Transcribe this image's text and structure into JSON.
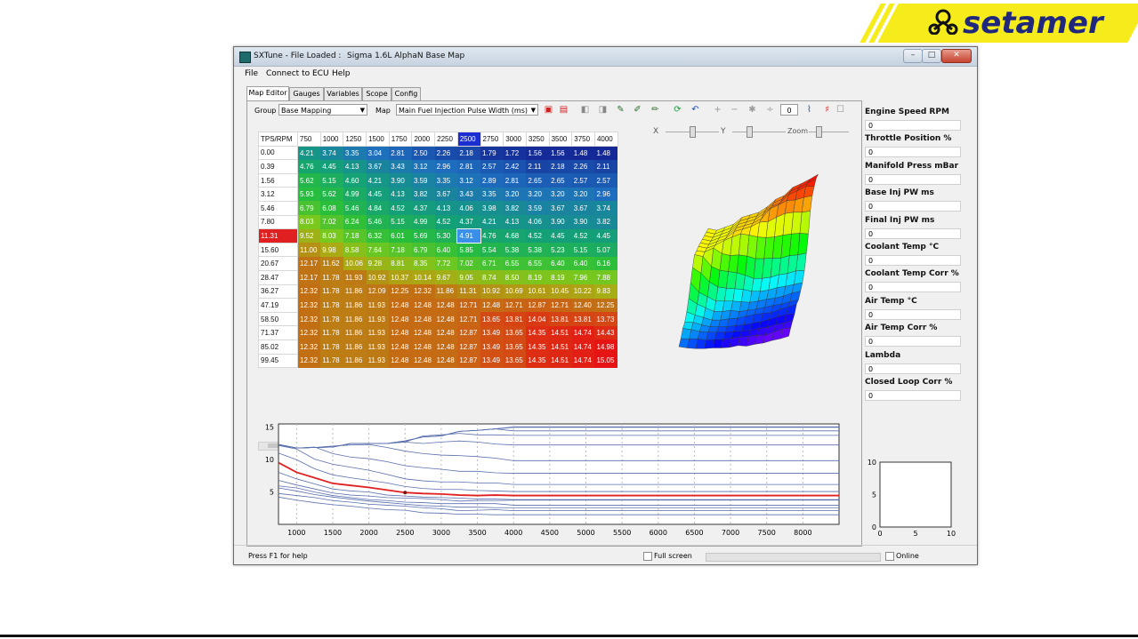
{
  "brand": {
    "name": "setamer",
    "colors": {
      "yellow": "#f6ec1b",
      "navy": "#20287d"
    }
  },
  "window": {
    "title": "SXTune - File Loaded :",
    "file": "Sigma 1.6L AlphaN Base Map",
    "buttons": {
      "minimize": "–",
      "maximize": "□",
      "close": "✕"
    }
  },
  "menu": [
    "File",
    "Connect to ECU",
    "Help"
  ],
  "tabs": [
    "Map Editor",
    "Gauges",
    "Variables",
    "Scope",
    "Config"
  ],
  "toolbar": {
    "group_label": "Group",
    "group_value": "Base Mapping",
    "map_label": "Map",
    "map_value": "Main Fuel Injection Pulse Width (ms)",
    "zoom_value": "0",
    "axis_x": "X",
    "axis_y": "Y",
    "zoom_label": "Zoom"
  },
  "table": {
    "corner": "TPS/RPM",
    "rpm": [
      "750",
      "1000",
      "1250",
      "1500",
      "1750",
      "2000",
      "2250",
      "2500",
      "2750",
      "3000",
      "3250",
      "3500",
      "3750",
      "4000"
    ],
    "selected_col": 7,
    "selected_row": 6,
    "rows": [
      {
        "tps": "0.00",
        "v": [
          "4.21",
          "3.74",
          "3.35",
          "3.04",
          "2.81",
          "2.50",
          "2.26",
          "2.18",
          "1.79",
          "1.72",
          "1.56",
          "1.56",
          "1.48",
          "1.48"
        ]
      },
      {
        "tps": "0.39",
        "v": [
          "4.76",
          "4.45",
          "4.13",
          "3.67",
          "3.43",
          "3.12",
          "2.96",
          "2.81",
          "2.57",
          "2.42",
          "2.11",
          "2.18",
          "2.26",
          "2.11"
        ]
      },
      {
        "tps": "1.56",
        "v": [
          "5.62",
          "5.15",
          "4.60",
          "4.21",
          "3.90",
          "3.59",
          "3.35",
          "3.12",
          "2.89",
          "2.81",
          "2.65",
          "2.65",
          "2.57",
          "2.57"
        ]
      },
      {
        "tps": "3.12",
        "v": [
          "5.93",
          "5.62",
          "4.99",
          "4.45",
          "4.13",
          "3.82",
          "3.67",
          "3.43",
          "3.35",
          "3.20",
          "3.20",
          "3.20",
          "3.20",
          "2.96"
        ]
      },
      {
        "tps": "5.46",
        "v": [
          "6.79",
          "6.08",
          "5.46",
          "4.84",
          "4.52",
          "4.37",
          "4.13",
          "4.06",
          "3.98",
          "3.82",
          "3.59",
          "3.67",
          "3.67",
          "3.74"
        ]
      },
      {
        "tps": "7.80",
        "v": [
          "8.03",
          "7.02",
          "6.24",
          "5.46",
          "5.15",
          "4.99",
          "4.52",
          "4.37",
          "4.21",
          "4.13",
          "4.06",
          "3.90",
          "3.90",
          "3.82"
        ]
      },
      {
        "tps": "11.31",
        "v": [
          "9.52",
          "8.03",
          "7.18",
          "6.32",
          "6.01",
          "5.69",
          "5.30",
          "4.91",
          "4.76",
          "4.68",
          "4.52",
          "4.45",
          "4.52",
          "4.45"
        ]
      },
      {
        "tps": "15.60",
        "v": [
          "11.00",
          "9.98",
          "8.58",
          "7.64",
          "7.18",
          "6.79",
          "6.40",
          "5.85",
          "5.54",
          "5.38",
          "5.38",
          "5.23",
          "5.15",
          "5.07"
        ]
      },
      {
        "tps": "20.67",
        "v": [
          "12.17",
          "11.62",
          "10.06",
          "9.28",
          "8.81",
          "8.35",
          "7.72",
          "7.02",
          "6.71",
          "6.55",
          "6.55",
          "6.40",
          "6.40",
          "6.16"
        ]
      },
      {
        "tps": "28.47",
        "v": [
          "12.17",
          "11.78",
          "11.93",
          "10.92",
          "10.37",
          "10.14",
          "9.67",
          "9.05",
          "8.74",
          "8.50",
          "8.19",
          "8.19",
          "7.96",
          "7.88"
        ]
      },
      {
        "tps": "36.27",
        "v": [
          "12.32",
          "11.78",
          "11.86",
          "12.09",
          "12.25",
          "12.32",
          "11.86",
          "11.31",
          "10.92",
          "10.69",
          "10.61",
          "10.45",
          "10.22",
          "9.83"
        ]
      },
      {
        "tps": "47.19",
        "v": [
          "12.32",
          "11.78",
          "11.86",
          "11.93",
          "12.48",
          "12.48",
          "12.48",
          "12.71",
          "12.48",
          "12.71",
          "12.87",
          "12.71",
          "12.40",
          "12.25"
        ]
      },
      {
        "tps": "58.50",
        "v": [
          "12.32",
          "11.78",
          "11.86",
          "11.93",
          "12.48",
          "12.48",
          "12.48",
          "12.71",
          "13.65",
          "13.81",
          "14.04",
          "13.81",
          "13.81",
          "13.73"
        ]
      },
      {
        "tps": "71.37",
        "v": [
          "12.32",
          "11.78",
          "11.86",
          "11.93",
          "12.48",
          "12.48",
          "12.48",
          "12.87",
          "13.49",
          "13.65",
          "14.35",
          "14.51",
          "14.74",
          "14.43"
        ]
      },
      {
        "tps": "85.02",
        "v": [
          "12.32",
          "11.78",
          "11.86",
          "11.93",
          "12.48",
          "12.48",
          "12.48",
          "12.87",
          "13.49",
          "13.65",
          "14.35",
          "14.51",
          "14.74",
          "14.98"
        ]
      },
      {
        "tps": "99.45",
        "v": [
          "12.32",
          "11.78",
          "11.86",
          "11.93",
          "12.48",
          "12.48",
          "12.48",
          "12.87",
          "13.49",
          "13.65",
          "14.35",
          "14.51",
          "14.74",
          "15.05"
        ]
      }
    ]
  },
  "gauges": [
    {
      "label": "Engine Speed RPM",
      "value": "0"
    },
    {
      "label": "Throttle Position %",
      "value": "0"
    },
    {
      "label": "Manifold Press mBar",
      "value": "0"
    },
    {
      "label": "Base Inj PW ms",
      "value": "0"
    },
    {
      "label": "Final Inj PW ms",
      "value": "0"
    },
    {
      "label": "Coolant Temp °C",
      "value": "0"
    },
    {
      "label": "Coolant Temp Corr %",
      "value": "0"
    },
    {
      "label": "Air Temp °C",
      "value": "0"
    },
    {
      "label": "Air Temp Corr %",
      "value": "0"
    },
    {
      "label": "Lambda",
      "value": "0"
    },
    {
      "label": "Closed Loop Corr %",
      "value": "0"
    }
  ],
  "chart_data": [
    {
      "type": "line",
      "x": [
        750,
        1000,
        1250,
        1500,
        1750,
        2000,
        2250,
        2500,
        2750,
        3000,
        3250,
        3500,
        3750,
        4000,
        5000,
        6000,
        7000,
        8000,
        8500
      ],
      "xticks": [
        "1000",
        "1500",
        "2000",
        "2500",
        "3000",
        "3500",
        "4000",
        "4500",
        "5000",
        "5500",
        "6000",
        "6500",
        "7000",
        "7500",
        "8000"
      ],
      "yticks": [
        "5",
        "10",
        "15"
      ],
      "ylim": [
        0,
        15.5
      ],
      "xlim": [
        750,
        8500
      ],
      "highlight_series_color": "#e02020",
      "highlight_series_index": 6,
      "grid": true
    },
    {
      "type": "scatter",
      "xticks": [
        "0",
        "5",
        "10"
      ],
      "yticks": [
        "0",
        "5",
        "10"
      ],
      "xlim": [
        0,
        10
      ],
      "ylim": [
        0,
        10
      ]
    }
  ],
  "status": {
    "help": "Press F1 for help",
    "fullscreen": "Full screen",
    "online": "Online"
  }
}
